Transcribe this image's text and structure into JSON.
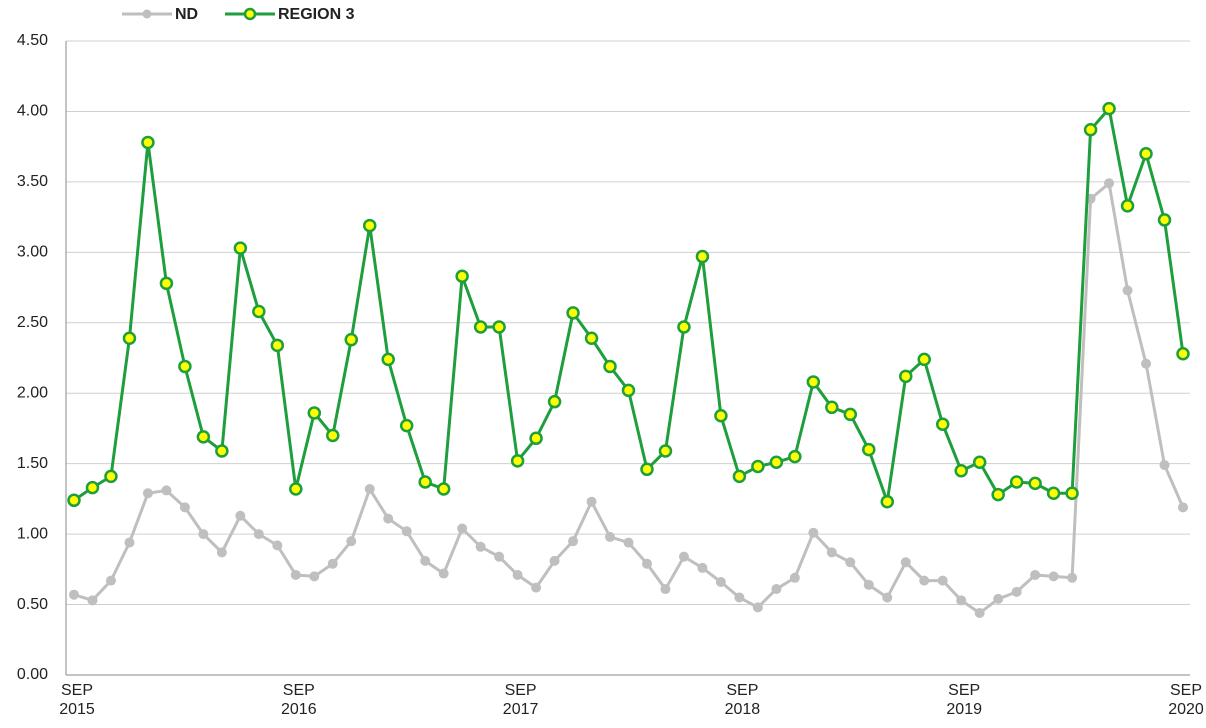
{
  "chart_data": {
    "type": "line",
    "categories": [
      "SEP\n2015",
      null,
      null,
      null,
      null,
      null,
      null,
      null,
      null,
      null,
      null,
      null,
      "SEP\n2016",
      null,
      null,
      null,
      null,
      null,
      null,
      null,
      null,
      null,
      null,
      null,
      "SEP\n2017",
      null,
      null,
      null,
      null,
      null,
      null,
      null,
      null,
      null,
      null,
      null,
      "SEP\n2018",
      null,
      null,
      null,
      null,
      null,
      null,
      null,
      null,
      null,
      null,
      null,
      "SEP\n2019",
      null,
      null,
      null,
      null,
      null,
      null,
      null,
      null,
      null,
      null,
      null,
      "SEP\n2020"
    ],
    "series": [
      {
        "name": "ND",
        "color": "#bfbfbf",
        "marker_color": "#bfbfbf",
        "values": [
          0.57,
          0.53,
          0.67,
          0.94,
          1.29,
          1.31,
          1.19,
          1.0,
          0.87,
          1.13,
          1.0,
          0.92,
          0.71,
          0.7,
          0.79,
          0.95,
          1.32,
          1.11,
          1.02,
          0.81,
          0.72,
          1.04,
          0.91,
          0.84,
          0.71,
          0.62,
          0.81,
          0.95,
          1.23,
          0.98,
          0.94,
          0.79,
          0.61,
          0.84,
          0.76,
          0.66,
          0.55,
          0.48,
          0.61,
          0.69,
          1.01,
          0.87,
          0.8,
          0.64,
          0.55,
          0.8,
          0.67,
          0.67,
          0.53,
          0.44,
          0.54,
          0.59,
          0.71,
          0.7,
          0.69,
          3.38,
          3.49,
          2.73,
          2.21,
          1.49,
          1.19
        ]
      },
      {
        "name": "REGION 3",
        "color": "#1e9e3c",
        "marker_color": "#ffff00",
        "values": [
          1.24,
          1.33,
          1.41,
          2.39,
          3.78,
          2.78,
          2.19,
          1.69,
          1.59,
          3.03,
          2.58,
          2.34,
          1.32,
          1.86,
          1.7,
          2.38,
          3.19,
          2.24,
          1.77,
          1.37,
          1.32,
          2.83,
          2.47,
          2.47,
          1.52,
          1.68,
          1.94,
          2.57,
          2.39,
          2.19,
          2.02,
          1.46,
          1.59,
          2.47,
          2.97,
          1.84,
          1.41,
          1.48,
          1.51,
          1.55,
          2.08,
          1.9,
          1.85,
          1.6,
          1.23,
          2.12,
          2.24,
          1.78,
          1.45,
          1.51,
          1.28,
          1.37,
          1.36,
          1.29,
          1.29,
          3.87,
          4.02,
          3.33,
          3.7,
          3.23,
          2.28
        ]
      }
    ],
    "ylim": [
      0,
      4.5
    ],
    "yticks": [
      {
        "value": 0,
        "label": "0.00"
      },
      {
        "value": 0.5,
        "label": "0.50"
      },
      {
        "value": 1,
        "label": "1.00"
      },
      {
        "value": 1.5,
        "label": "1.50"
      },
      {
        "value": 2,
        "label": "2.00"
      },
      {
        "value": 2.5,
        "label": "2.50"
      },
      {
        "value": 3,
        "label": "3.00"
      },
      {
        "value": 3.5,
        "label": "3.50"
      },
      {
        "value": 4,
        "label": "4.00"
      },
      {
        "value": 4.5,
        "label": "4.50"
      }
    ],
    "grid": true,
    "legend": "top-left"
  }
}
